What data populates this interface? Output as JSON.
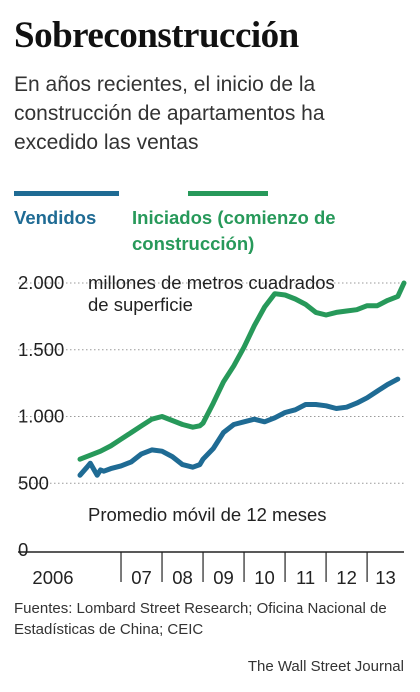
{
  "chart_data": {
    "type": "line",
    "title": "Sobreconstrucción",
    "subtitle": "En años recientes, el inicio de la construcción de apartamentos ha excedido las ventas",
    "ylabel": "millones de metros cuadrados de superficie",
    "annotation": "Promedio móvil de 12 meses",
    "ylim": [
      0,
      2000
    ],
    "yticks": [
      {
        "value": 0,
        "label": "0"
      },
      {
        "value": 500,
        "label": "500"
      },
      {
        "value": 1000,
        "label": "1.000"
      },
      {
        "value": 1500,
        "label": "1.500"
      },
      {
        "value": 2000,
        "label": "2.000"
      }
    ],
    "xlim": [
      2006,
      2013.9
    ],
    "xticks": [
      {
        "value": 2006,
        "label": "2006"
      },
      {
        "value": 2007,
        "label": "07"
      },
      {
        "value": 2008,
        "label": "08"
      },
      {
        "value": 2009,
        "label": "09"
      },
      {
        "value": 2010,
        "label": "10"
      },
      {
        "value": 2011,
        "label": "11"
      },
      {
        "value": 2012,
        "label": "12"
      },
      {
        "value": 2013,
        "label": "13"
      }
    ],
    "grid": true,
    "series": [
      {
        "name": "Vendidos",
        "color": "#1f6b94",
        "x": [
          2006.0,
          2006.17,
          2006.25,
          2006.42,
          2006.5,
          2006.58,
          2006.75,
          2007.0,
          2007.25,
          2007.5,
          2007.75,
          2008.0,
          2008.25,
          2008.5,
          2008.75,
          2008.92,
          2009.0,
          2009.25,
          2009.5,
          2009.75,
          2010.0,
          2010.25,
          2010.5,
          2010.75,
          2011.0,
          2011.25,
          2011.5,
          2011.75,
          2012.0,
          2012.25,
          2012.5,
          2012.75,
          2013.0,
          2013.25,
          2013.5,
          2013.75
        ],
        "y": [
          560,
          620,
          650,
          560,
          600,
          590,
          610,
          630,
          660,
          720,
          750,
          740,
          700,
          640,
          620,
          640,
          680,
          760,
          880,
          940,
          960,
          980,
          960,
          990,
          1030,
          1050,
          1090,
          1090,
          1080,
          1060,
          1070,
          1100,
          1140,
          1190,
          1240,
          1280
        ]
      },
      {
        "name": "Iniciados (comienzo de construcción)",
        "color": "#27995a",
        "x": [
          2006.0,
          2006.25,
          2006.5,
          2006.75,
          2007.0,
          2007.25,
          2007.5,
          2007.75,
          2008.0,
          2008.25,
          2008.5,
          2008.75,
          2008.92,
          2009.0,
          2009.25,
          2009.5,
          2009.75,
          2010.0,
          2010.25,
          2010.5,
          2010.75,
          2011.0,
          2011.25,
          2011.5,
          2011.75,
          2012.0,
          2012.25,
          2012.5,
          2012.75,
          2013.0,
          2013.25,
          2013.5,
          2013.75,
          2013.9
        ],
        "y": [
          680,
          710,
          740,
          780,
          830,
          880,
          930,
          980,
          1000,
          970,
          940,
          920,
          930,
          950,
          1100,
          1260,
          1380,
          1520,
          1680,
          1820,
          1920,
          1910,
          1880,
          1840,
          1780,
          1760,
          1780,
          1790,
          1800,
          1830,
          1830,
          1870,
          1900,
          2000
        ]
      }
    ]
  },
  "legend": {
    "sold": "Vendidos",
    "started": "Iniciados (comienzo de construcción)"
  },
  "footer": {
    "sources": "Fuentes: Lombard Street Research; Oficina Nacional de Estadísticas de China; CEIC",
    "credit": "The Wall Street Journal"
  },
  "colors": {
    "sold": "#1f6b94",
    "started": "#27995a",
    "grid": "#9a9a9a"
  }
}
